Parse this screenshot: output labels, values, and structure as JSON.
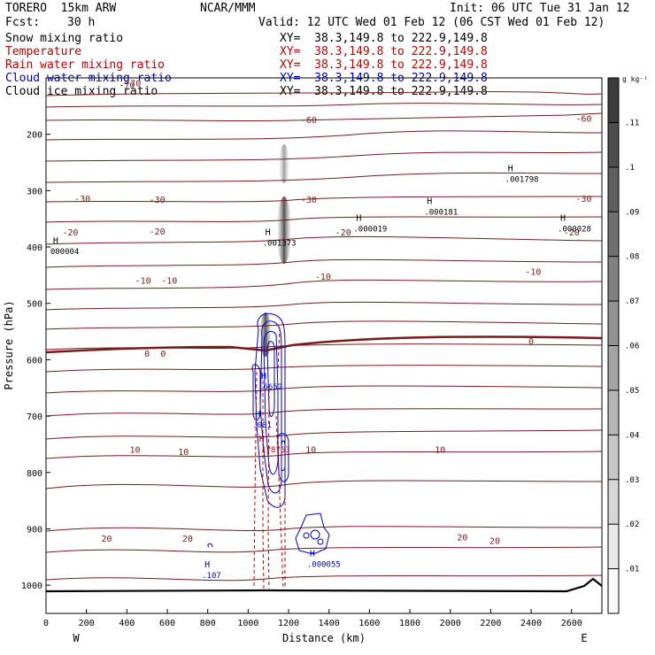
{
  "header": {
    "model": "TORERO  15km ARW",
    "center": "NCAR/MMM",
    "init": "Init: 06 UTC Tue 31 Jan 12",
    "fcst_label": "Fcst:",
    "fcst_value": "30 h",
    "valid": "Valid: 12 UTC Wed 01 Feb 12 (06 CST Wed 01 Feb 12)"
  },
  "fields": [
    {
      "name": "Snow mixing ratio",
      "xy": "XY=  38.3,149.8 to 222.9,149.8",
      "color": "#000000"
    },
    {
      "name": "Temperature",
      "xy": "XY=  38.3,149.8 to 222.9,149.8",
      "color": "#c00000"
    },
    {
      "name": "Rain water mixing ratio",
      "xy": "XY=  38.3,149.8 to 222.9,149.8",
      "color": "#c00000"
    },
    {
      "name": "Cloud water mixing ratio",
      "xy": "XY=  38.3,149.8 to 222.9,149.8",
      "color": "#0000c8"
    },
    {
      "name": "Cloud ice mixing ratio",
      "xy": "XY=  38.3,149.8 to 222.9,149.8",
      "color": "#000000"
    }
  ],
  "colorbar": {
    "unit_label": "g kg⁻¹",
    "ticks": [
      ".11",
      ".1",
      ".09",
      ".08",
      ".07",
      ".06",
      ".05",
      ".04",
      ".03",
      ".02",
      ".01"
    ]
  },
  "chart_data": {
    "type": "cross-section contour",
    "xlabel": "Distance (km)",
    "ylabel": "Pressure (hPa)",
    "xlim": [
      0,
      2750
    ],
    "ylim": [
      1050,
      100
    ],
    "x_ticks": [
      0,
      200,
      400,
      600,
      800,
      1000,
      1200,
      1400,
      1600,
      1800,
      2000,
      2200,
      2400,
      2600
    ],
    "y_ticks": [
      200,
      300,
      400,
      500,
      600,
      700,
      800,
      900,
      1000
    ],
    "west_label": "W",
    "east_label": "E",
    "temperature_labels": [
      {
        "text": "-70",
        "x": 430,
        "p": 110
      },
      {
        "text": "-70",
        "x": 400,
        "p": 113
      },
      {
        "text": "-60",
        "x": 2660,
        "p": 173
      },
      {
        "text": "-60",
        "x": 1300,
        "p": 175
      },
      {
        "text": "-30",
        "x": 180,
        "p": 315
      },
      {
        "text": "-30",
        "x": 550,
        "p": 317
      },
      {
        "text": "-30",
        "x": 1300,
        "p": 317
      },
      {
        "text": "-30",
        "x": 2660,
        "p": 315
      },
      {
        "text": "-20",
        "x": 120,
        "p": 375
      },
      {
        "text": "-20",
        "x": 550,
        "p": 373
      },
      {
        "text": "-20",
        "x": 1470,
        "p": 375
      },
      {
        "text": "-20",
        "x": 2600,
        "p": 375
      },
      {
        "text": "-10",
        "x": 480,
        "p": 460
      },
      {
        "text": "-10",
        "x": 610,
        "p": 460
      },
      {
        "text": "-10",
        "x": 1370,
        "p": 453
      },
      {
        "text": "-10",
        "x": 2410,
        "p": 445
      },
      {
        "text": "0",
        "x": 500,
        "p": 590
      },
      {
        "text": "0",
        "x": 580,
        "p": 590
      },
      {
        "text": "0",
        "x": 2400,
        "p": 568
      },
      {
        "text": "10",
        "x": 440,
        "p": 760
      },
      {
        "text": "10",
        "x": 680,
        "p": 764
      },
      {
        "text": "10",
        "x": 1310,
        "p": 760
      },
      {
        "text": "10",
        "x": 1950,
        "p": 760
      },
      {
        "text": "20",
        "x": 300,
        "p": 918
      },
      {
        "text": "20",
        "x": 700,
        "p": 918
      },
      {
        "text": "20",
        "x": 2060,
        "p": 916
      },
      {
        "text": "20",
        "x": 2220,
        "p": 922
      }
    ],
    "maxima": [
      {
        "label": "H",
        "value": "000004",
        "x": 30,
        "p": 400,
        "color": "#000000"
      },
      {
        "label": "H",
        "value": ".001373",
        "x": 1080,
        "p": 385,
        "color": "#000000"
      },
      {
        "label": "H",
        "value": ".000019",
        "x": 1530,
        "p": 360,
        "color": "#000000"
      },
      {
        "label": "H",
        "value": ".000181",
        "x": 1880,
        "p": 330,
        "color": "#000000"
      },
      {
        "label": "H",
        "value": ".001798",
        "x": 2280,
        "p": 272,
        "color": "#000000"
      },
      {
        "label": "H",
        "value": ".000028",
        "x": 2540,
        "p": 360,
        "color": "#000000"
      },
      {
        "label": "H",
        "value": ".6652",
        "x": 1060,
        "p": 640,
        "color": "#0000c8"
      },
      {
        "label": "H",
        "value": ".001",
        "x": 1030,
        "p": 708,
        "color": "#0000c8"
      },
      {
        "label": "H",
        "value": ".178763",
        "x": 1050,
        "p": 752,
        "color": "#c00000"
      },
      {
        "label": "H",
        "value": ".107",
        "x": 780,
        "p": 975,
        "color": "#0000c8"
      },
      {
        "label": "H",
        "value": ".000055",
        "x": 1300,
        "p": 955,
        "color": "#0000c8"
      }
    ]
  }
}
